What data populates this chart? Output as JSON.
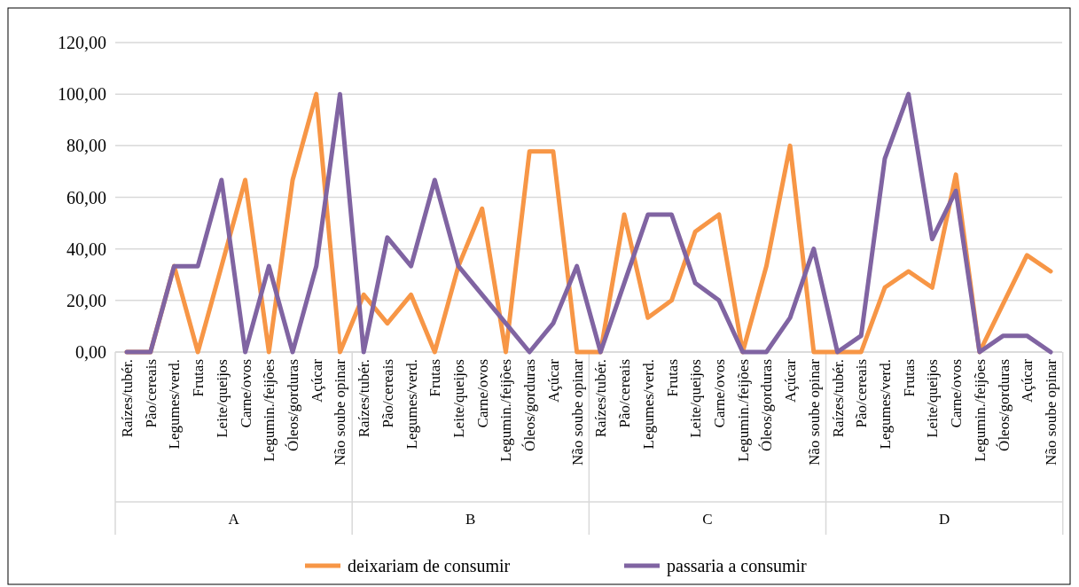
{
  "chart_data": {
    "type": "line",
    "categories": [
      "Raízes/tubér.",
      "Pão/cereais",
      "Legumes/verd.",
      "Frutas",
      "Leite/queijos",
      "Carne/ovos",
      "Legumin./feijões",
      "Óleos/gorduras",
      "Açúcar",
      "Não soube opinar",
      "Raízes/tubér.",
      "Pão/cereais",
      "Legumes/verd.",
      "Frutas",
      "Leite/queijos",
      "Carne/ovos",
      "Legumin./feijões",
      "Óleos/gorduras",
      "Açúcar",
      "Não soube opinar",
      "Raízes/tubér.",
      "Pão/cereais",
      "Legumes/verd.",
      "Frutas",
      "Leite/queijos",
      "Carne/ovos",
      "Legumin./feijões",
      "Óleos/gorduras",
      "Açúcar",
      "Não soube opinar",
      "Raízes/tubér.",
      "Pão/cereais",
      "Legumes/verd.",
      "Frutas",
      "Leite/queijos",
      "Carne/ovos",
      "Legumin./feijões",
      "Óleos/gorduras",
      "Açúcar",
      "Não soube opinar"
    ],
    "annotations": [
      "A",
      "B",
      "C",
      "D"
    ],
    "series": [
      {
        "name": "deixariam de consumir",
        "color": "#f79646",
        "values": [
          0,
          0,
          33.3,
          0,
          33.3,
          66.7,
          0,
          66.7,
          100,
          0,
          22.2,
          11.1,
          22.2,
          0,
          33.3,
          55.6,
          0,
          77.8,
          77.8,
          0,
          0,
          53.3,
          13.3,
          20,
          46.7,
          53.3,
          0,
          33.3,
          80,
          0,
          0,
          0,
          25,
          31.3,
          25,
          68.8,
          0,
          18.8,
          37.5,
          31.3
        ]
      },
      {
        "name": "passaria a consumir",
        "color": "#8064a2",
        "values": [
          0,
          0,
          33.3,
          33.3,
          66.7,
          0,
          33.3,
          0,
          33.3,
          100,
          0,
          44.4,
          33.3,
          66.7,
          33.3,
          22.2,
          11.1,
          0,
          11.1,
          33.3,
          0,
          26.7,
          53.3,
          53.3,
          26.7,
          20,
          0,
          0,
          13.3,
          40,
          0,
          6.3,
          75,
          100,
          43.8,
          62.5,
          0,
          6.3,
          6.3,
          0
        ]
      }
    ],
    "ylim": [
      0,
      120
    ],
    "yticks": [
      {
        "value": 0,
        "label": "0,00"
      },
      {
        "value": 20,
        "label": "20,00"
      },
      {
        "value": 40,
        "label": "40,00"
      },
      {
        "value": 60,
        "label": "60,00"
      },
      {
        "value": 80,
        "label": "80,00"
      },
      {
        "value": 100,
        "label": "100,00"
      },
      {
        "value": 120,
        "label": "120,00"
      }
    ],
    "grid": "y",
    "legend": "bottom",
    "line_style": "solid",
    "marker": "none"
  }
}
